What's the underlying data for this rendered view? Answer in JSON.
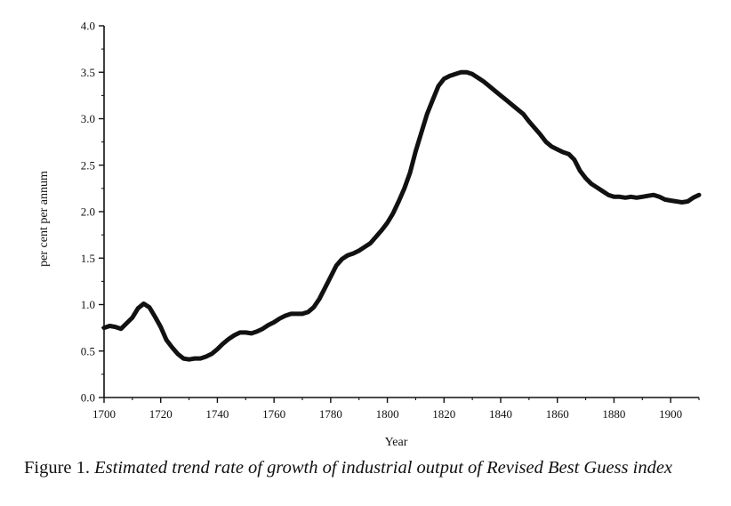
{
  "figure_label": "Figure 1.",
  "caption_text": "Estimated trend rate of growth of industrial output of Revised Best Guess index",
  "line_color": "#111111",
  "chart_data": {
    "type": "line",
    "xlabel": "Year",
    "ylabel": "per cent per annum",
    "xlim": [
      1700,
      1910
    ],
    "ylim": [
      0.0,
      4.0
    ],
    "x_ticks": [
      1700,
      1720,
      1740,
      1760,
      1780,
      1800,
      1820,
      1840,
      1860,
      1880,
      1900
    ],
    "x_tick_labels": [
      "1700",
      "1720",
      "1740",
      "1760",
      "1780",
      "1800",
      "1820",
      "1840",
      "1860",
      "1880",
      "1900"
    ],
    "y_ticks": [
      0.0,
      0.5,
      1.0,
      1.5,
      2.0,
      2.5,
      3.0,
      3.5,
      4.0
    ],
    "y_tick_labels": [
      "0.0",
      "0.5",
      "1.0",
      "1.5",
      "2.0",
      "2.5",
      "3.0",
      "3.5",
      "4.0"
    ],
    "grid": false,
    "series": [
      {
        "x": [
          1700,
          1702,
          1704,
          1706,
          1708,
          1710,
          1712,
          1714,
          1716,
          1718,
          1720,
          1722,
          1724,
          1726,
          1728,
          1730,
          1732,
          1734,
          1736,
          1738,
          1740,
          1742,
          1744,
          1746,
          1748,
          1750,
          1752,
          1754,
          1756,
          1758,
          1760,
          1762,
          1764,
          1766,
          1768,
          1770,
          1772,
          1774,
          1776,
          1778,
          1780,
          1782,
          1784,
          1786,
          1788,
          1790,
          1792,
          1794,
          1796,
          1798,
          1800,
          1802,
          1804,
          1806,
          1808,
          1810,
          1812,
          1814,
          1816,
          1818,
          1820,
          1822,
          1824,
          1826,
          1828,
          1830,
          1832,
          1834,
          1836,
          1838,
          1840,
          1842,
          1844,
          1846,
          1848,
          1850,
          1852,
          1854,
          1856,
          1858,
          1860,
          1862,
          1864,
          1866,
          1868,
          1870,
          1872,
          1874,
          1876,
          1878,
          1880,
          1882,
          1884,
          1886,
          1888,
          1890,
          1892,
          1894,
          1896,
          1898,
          1900,
          1902,
          1904,
          1906,
          1908,
          1910
        ],
        "values": [
          0.75,
          0.77,
          0.76,
          0.74,
          0.8,
          0.86,
          0.96,
          1.01,
          0.97,
          0.87,
          0.76,
          0.62,
          0.54,
          0.47,
          0.42,
          0.41,
          0.42,
          0.42,
          0.44,
          0.47,
          0.52,
          0.58,
          0.63,
          0.67,
          0.7,
          0.7,
          0.69,
          0.71,
          0.74,
          0.78,
          0.81,
          0.85,
          0.88,
          0.9,
          0.9,
          0.9,
          0.92,
          0.97,
          1.06,
          1.18,
          1.3,
          1.42,
          1.49,
          1.53,
          1.55,
          1.58,
          1.62,
          1.66,
          1.73,
          1.8,
          1.88,
          1.98,
          2.11,
          2.25,
          2.42,
          2.65,
          2.85,
          3.05,
          3.2,
          3.35,
          3.43,
          3.46,
          3.48,
          3.5,
          3.5,
          3.48,
          3.44,
          3.4,
          3.35,
          3.3,
          3.25,
          3.2,
          3.15,
          3.1,
          3.05,
          2.97,
          2.9,
          2.83,
          2.75,
          2.7,
          2.67,
          2.64,
          2.62,
          2.56,
          2.44,
          2.36,
          2.3,
          2.26,
          2.22,
          2.18,
          2.16,
          2.16,
          2.15,
          2.16,
          2.15,
          2.16,
          2.17,
          2.18,
          2.16,
          2.13,
          2.12,
          2.11,
          2.1,
          2.11,
          2.15,
          2.18
        ]
      }
    ]
  }
}
